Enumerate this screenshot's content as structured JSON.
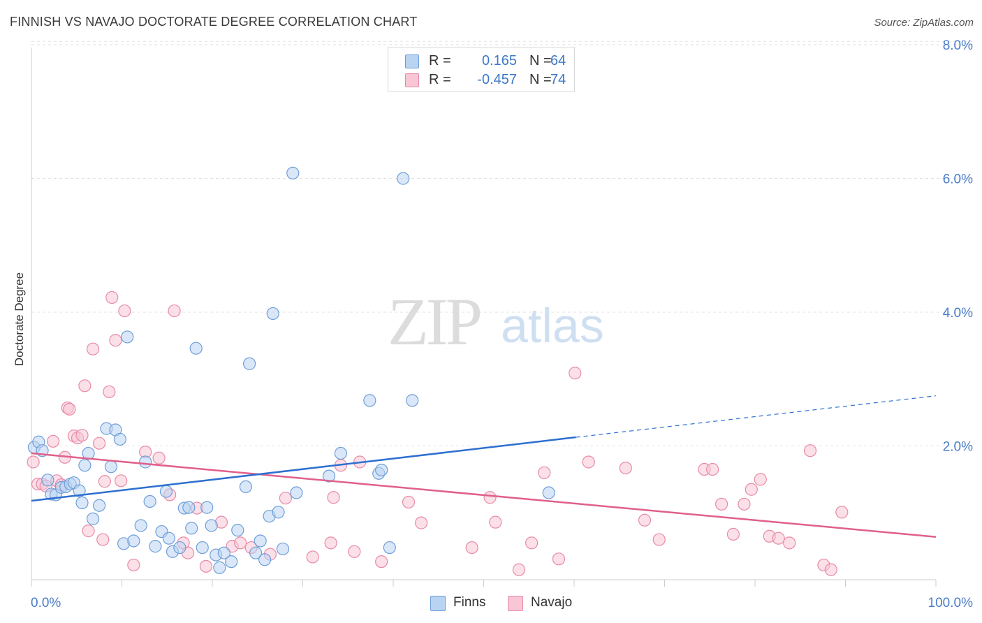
{
  "header": {
    "title": "FINNISH VS NAVAJO DOCTORATE DEGREE CORRELATION CHART",
    "source": "Source: ZipAtlas.com"
  },
  "watermark": {
    "zip": "ZIP",
    "atlas": "atlas"
  },
  "legend_top": {
    "rows": [
      {
        "r_label": "R =",
        "r_value": "0.165",
        "n_label": "N =",
        "n_value": "64"
      },
      {
        "r_label": "R =",
        "r_value": "-0.457",
        "n_label": "N =",
        "n_value": "74"
      }
    ]
  },
  "legend_bottom": {
    "finns": "Finns",
    "navajo": "Navajo"
  },
  "colors": {
    "finns_fill": "#b9d3f3",
    "finns_stroke": "#6f9fd8",
    "finns_line": "#2d6fd0",
    "navajo_fill": "#f8c6d5",
    "navajo_stroke": "#e88aa8",
    "navajo_line": "#e0608b",
    "tick_label": "#4a7cc8"
  },
  "chart_data": {
    "type": "scatter",
    "title": "FINNISH VS NAVAJO DOCTORATE DEGREE CORRELATION CHART",
    "xlabel": "",
    "ylabel": "Doctorate Degree",
    "xlim": [
      0,
      100
    ],
    "ylim": [
      0,
      8.2
    ],
    "x_tick_labels": [
      "0.0%",
      "100.0%"
    ],
    "y_ticks": [
      2,
      4,
      6,
      8
    ],
    "y_tick_labels": [
      "2.0%",
      "4.0%",
      "6.0%",
      "8.0%"
    ],
    "grid": true,
    "legend_position": "top-center",
    "series": [
      {
        "name": "Finns",
        "r": 0.165,
        "n": 64,
        "trend": {
          "x": [
            0,
            60.2
          ],
          "y": [
            1.18,
            2.13
          ],
          "dashed_to": [
            100,
            2.75
          ]
        },
        "points": [
          [
            0.3,
            1.98
          ],
          [
            0.8,
            2.06
          ],
          [
            1.2,
            1.93
          ],
          [
            1.8,
            1.49
          ],
          [
            2.2,
            1.28
          ],
          [
            2.7,
            1.27
          ],
          [
            3.3,
            1.38
          ],
          [
            3.8,
            1.39
          ],
          [
            4.3,
            1.43
          ],
          [
            4.7,
            1.45
          ],
          [
            5.3,
            1.33
          ],
          [
            5.6,
            1.15
          ],
          [
            5.9,
            1.71
          ],
          [
            6.3,
            1.89
          ],
          [
            6.8,
            0.91
          ],
          [
            7.5,
            1.11
          ],
          [
            8.3,
            2.26
          ],
          [
            8.8,
            1.69
          ],
          [
            9.3,
            2.24
          ],
          [
            9.8,
            2.1
          ],
          [
            10.2,
            0.54
          ],
          [
            10.6,
            3.63
          ],
          [
            11.3,
            0.58
          ],
          [
            12.1,
            0.81
          ],
          [
            12.6,
            1.76
          ],
          [
            13.1,
            1.17
          ],
          [
            13.7,
            0.5
          ],
          [
            14.4,
            0.72
          ],
          [
            14.9,
            1.32
          ],
          [
            15.2,
            0.62
          ],
          [
            15.6,
            0.42
          ],
          [
            16.4,
            0.48
          ],
          [
            16.9,
            1.07
          ],
          [
            17.4,
            1.08
          ],
          [
            17.7,
            0.77
          ],
          [
            18.2,
            3.46
          ],
          [
            18.9,
            0.48
          ],
          [
            19.4,
            1.08
          ],
          [
            19.9,
            0.81
          ],
          [
            20.4,
            0.37
          ],
          [
            20.8,
            0.18
          ],
          [
            21.3,
            0.4
          ],
          [
            22.1,
            0.27
          ],
          [
            22.8,
            0.74
          ],
          [
            23.7,
            1.39
          ],
          [
            24.1,
            3.23
          ],
          [
            24.8,
            0.4
          ],
          [
            25.3,
            0.58
          ],
          [
            25.8,
            0.3
          ],
          [
            26.3,
            0.95
          ],
          [
            26.7,
            3.98
          ],
          [
            27.3,
            1.01
          ],
          [
            27.8,
            0.46
          ],
          [
            28.9,
            6.08
          ],
          [
            29.3,
            1.3
          ],
          [
            32.9,
            1.55
          ],
          [
            34.2,
            1.89
          ],
          [
            37.4,
            2.68
          ],
          [
            38.4,
            1.59
          ],
          [
            38.7,
            1.64
          ],
          [
            39.6,
            0.48
          ],
          [
            41.1,
            6.0
          ],
          [
            42.1,
            2.68
          ],
          [
            57.2,
            1.3
          ]
        ]
      },
      {
        "name": "Navajo",
        "r": -0.457,
        "n": 74,
        "trend": {
          "x": [
            0,
            100
          ],
          "y": [
            1.89,
            0.64
          ]
        },
        "points": [
          [
            0.2,
            1.76
          ],
          [
            0.7,
            1.43
          ],
          [
            1.2,
            1.43
          ],
          [
            1.6,
            1.4
          ],
          [
            2.4,
            2.07
          ],
          [
            2.8,
            1.48
          ],
          [
            3.3,
            1.42
          ],
          [
            3.7,
            1.83
          ],
          [
            4.0,
            2.57
          ],
          [
            4.2,
            2.55
          ],
          [
            4.7,
            2.15
          ],
          [
            5.1,
            2.12
          ],
          [
            5.6,
            2.16
          ],
          [
            5.9,
            2.9
          ],
          [
            6.3,
            0.73
          ],
          [
            6.8,
            3.45
          ],
          [
            7.5,
            2.04
          ],
          [
            7.9,
            0.6
          ],
          [
            8.1,
            1.47
          ],
          [
            8.6,
            2.81
          ],
          [
            8.9,
            4.22
          ],
          [
            9.3,
            3.58
          ],
          [
            9.9,
            1.48
          ],
          [
            10.3,
            4.02
          ],
          [
            11.3,
            0.22
          ],
          [
            12.6,
            1.91
          ],
          [
            14.1,
            1.82
          ],
          [
            15.3,
            1.27
          ],
          [
            15.8,
            4.02
          ],
          [
            16.8,
            0.55
          ],
          [
            17.3,
            0.4
          ],
          [
            18.3,
            1.07
          ],
          [
            19.3,
            0.2
          ],
          [
            21.0,
            0.86
          ],
          [
            22.2,
            0.5
          ],
          [
            23.1,
            0.55
          ],
          [
            24.3,
            0.48
          ],
          [
            26.4,
            0.38
          ],
          [
            28.1,
            1.22
          ],
          [
            31.1,
            0.34
          ],
          [
            33.1,
            0.55
          ],
          [
            33.4,
            1.23
          ],
          [
            34.2,
            1.71
          ],
          [
            35.7,
            0.42
          ],
          [
            36.3,
            1.76
          ],
          [
            38.7,
            0.27
          ],
          [
            41.7,
            1.16
          ],
          [
            43.1,
            0.85
          ],
          [
            48.7,
            0.48
          ],
          [
            50.7,
            1.23
          ],
          [
            51.3,
            0.86
          ],
          [
            53.9,
            0.15
          ],
          [
            55.3,
            0.55
          ],
          [
            56.7,
            1.6
          ],
          [
            58.3,
            0.31
          ],
          [
            60.1,
            3.09
          ],
          [
            61.6,
            1.76
          ],
          [
            65.7,
            1.67
          ],
          [
            67.8,
            0.89
          ],
          [
            69.4,
            0.6
          ],
          [
            74.4,
            1.65
          ],
          [
            75.3,
            1.65
          ],
          [
            76.3,
            1.13
          ],
          [
            77.6,
            0.68
          ],
          [
            78.8,
            1.13
          ],
          [
            79.6,
            1.35
          ],
          [
            80.6,
            1.5
          ],
          [
            81.6,
            0.65
          ],
          [
            82.6,
            0.62
          ],
          [
            83.8,
            0.55
          ],
          [
            86.1,
            1.93
          ],
          [
            87.6,
            0.22
          ],
          [
            88.4,
            0.15
          ],
          [
            89.6,
            1.01
          ]
        ]
      }
    ]
  }
}
